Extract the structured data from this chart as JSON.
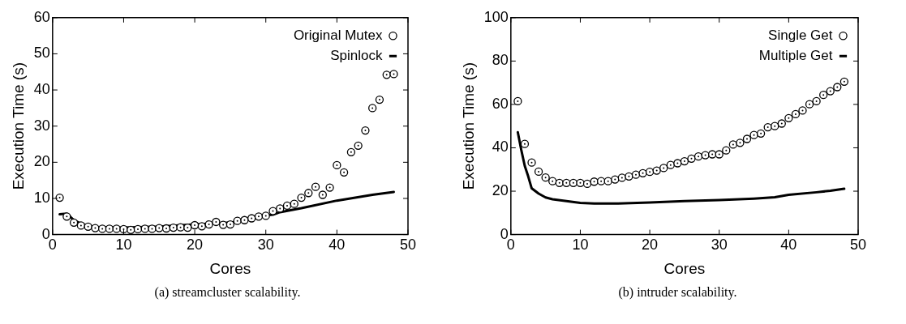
{
  "chart_data": [
    {
      "type": "scatter",
      "xlabel": "Cores",
      "ylabel": "Execution Time (s)",
      "xlim": [
        0,
        50
      ],
      "xticks": [
        0,
        10,
        20,
        30,
        40,
        50
      ],
      "ylim": [
        0,
        60
      ],
      "yticks": [
        0,
        10,
        20,
        30,
        40,
        50,
        60
      ],
      "grid": false,
      "legend": "top right",
      "annotations": [
        "(a) streamcluster scalability."
      ],
      "series": [
        {
          "name": "Original Mutex",
          "type": "scatter",
          "marker": "circle",
          "color": "#000000",
          "x": [
            1,
            2,
            3,
            4,
            5,
            6,
            7,
            8,
            9,
            10,
            11,
            12,
            13,
            14,
            15,
            16,
            17,
            18,
            19,
            20,
            21,
            22,
            23,
            24,
            25,
            26,
            27,
            28,
            29,
            30,
            31,
            32,
            33,
            34,
            35,
            36,
            37,
            38,
            39,
            40,
            41,
            42,
            43,
            44,
            45,
            46,
            47,
            48
          ],
          "values": [
            10.2,
            5,
            3.3,
            2.5,
            2.2,
            1.8,
            1.6,
            1.6,
            1.6,
            1.5,
            1.3,
            1.5,
            1.6,
            1.6,
            1.8,
            1.7,
            1.9,
            2,
            1.9,
            2.6,
            2.3,
            2.8,
            3.5,
            2.7,
            2.8,
            3.8,
            4,
            4.5,
            5,
            5.2,
            6.5,
            7.2,
            8,
            8.5,
            10.2,
            11.5,
            13.2,
            11,
            13,
            19.2,
            17.2,
            22.8,
            24.6,
            28.8,
            35,
            37.3,
            44.2,
            44.4
          ]
        },
        {
          "name": "Spinlock",
          "type": "line",
          "marker": "none",
          "line_style": "solid",
          "color": "#000000",
          "x": [
            1,
            2,
            3,
            4,
            5,
            6,
            8,
            10,
            15,
            20,
            25,
            28,
            30,
            31,
            32,
            35,
            40,
            45,
            48
          ],
          "values": [
            5.6,
            5.8,
            4,
            3,
            2.5,
            2.1,
            2,
            1.9,
            2.2,
            2.8,
            3.3,
            4.2,
            5.3,
            5.5,
            6.2,
            7.3,
            9.4,
            11,
            11.8
          ]
        }
      ]
    },
    {
      "type": "scatter",
      "xlabel": "Cores",
      "ylabel": "Execution Time (s)",
      "xlim": [
        0,
        50
      ],
      "xticks": [
        0,
        10,
        20,
        30,
        40,
        50
      ],
      "ylim": [
        0,
        100
      ],
      "yticks": [
        0,
        20,
        40,
        60,
        80,
        100
      ],
      "grid": false,
      "legend": "top right",
      "annotations": [
        "(b) intruder scalability."
      ],
      "series": [
        {
          "name": "Single Get",
          "type": "scatter",
          "marker": "circle",
          "color": "#000000",
          "x": [
            1,
            2,
            3,
            4,
            5,
            6,
            7,
            8,
            9,
            10,
            11,
            12,
            13,
            14,
            15,
            16,
            17,
            18,
            19,
            20,
            21,
            22,
            23,
            24,
            25,
            26,
            27,
            28,
            29,
            30,
            31,
            32,
            33,
            34,
            35,
            36,
            37,
            38,
            39,
            40,
            41,
            42,
            43,
            44,
            45,
            46,
            47,
            48
          ],
          "values": [
            61.5,
            41.8,
            33.2,
            29,
            26.3,
            24.6,
            23.8,
            23.8,
            23.8,
            23.8,
            23.4,
            24.4,
            24.6,
            24.6,
            25.4,
            26.2,
            26.8,
            27.6,
            28.3,
            28.9,
            29.5,
            30.7,
            32.1,
            32.9,
            33.8,
            35,
            36,
            36.6,
            37,
            37,
            38.8,
            41.5,
            42.3,
            44.1,
            45.9,
            46.6,
            49.5,
            50,
            51.2,
            53.7,
            55.5,
            57.2,
            60.1,
            61.5,
            64.4,
            66.1,
            68,
            70.5
          ]
        },
        {
          "name": "Multiple Get",
          "type": "line",
          "marker": "none",
          "line_style": "solid",
          "color": "#000000",
          "x": [
            1,
            1.5,
            2,
            2.5,
            3,
            4,
            5,
            6,
            8,
            10,
            12,
            15,
            20,
            25,
            30,
            35,
            38,
            40,
            44,
            46,
            48
          ],
          "values": [
            47.2,
            39,
            31.7,
            26.8,
            21.3,
            18.9,
            17.1,
            16.3,
            15.4,
            14.6,
            14.3,
            14.3,
            14.8,
            15.4,
            15.9,
            16.6,
            17.2,
            18.3,
            19.5,
            20.2,
            21.1
          ]
        }
      ]
    }
  ]
}
